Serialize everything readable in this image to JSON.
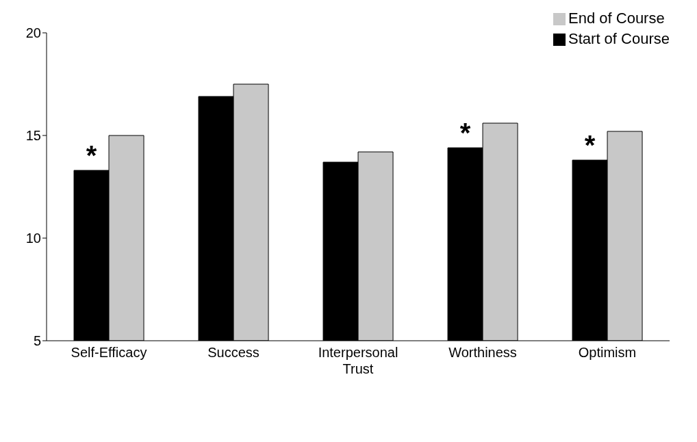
{
  "chart_data": {
    "type": "bar",
    "categories": [
      "Self-Efficacy",
      "Success",
      "Interpersonal Trust",
      "Worthiness",
      "Optimism"
    ],
    "series": [
      {
        "name": "Start of Course",
        "color": "#000000",
        "values": [
          13.3,
          16.9,
          13.7,
          14.4,
          13.8
        ]
      },
      {
        "name": "End of Course",
        "color": "#c8c8c8",
        "values": [
          15.0,
          17.5,
          14.2,
          15.6,
          15.2
        ]
      }
    ],
    "ylim": [
      5,
      20
    ],
    "yticks": [
      5,
      10,
      15,
      20
    ],
    "grid": false,
    "legend": "top right",
    "annotations": [
      {
        "text": "*",
        "x": "Self-Efficacy",
        "y": 13.3
      },
      {
        "text": "*",
        "x": "Worthiness",
        "y": 14.4
      },
      {
        "text": "*",
        "x": "Optimism",
        "y": 13.8
      }
    ]
  }
}
